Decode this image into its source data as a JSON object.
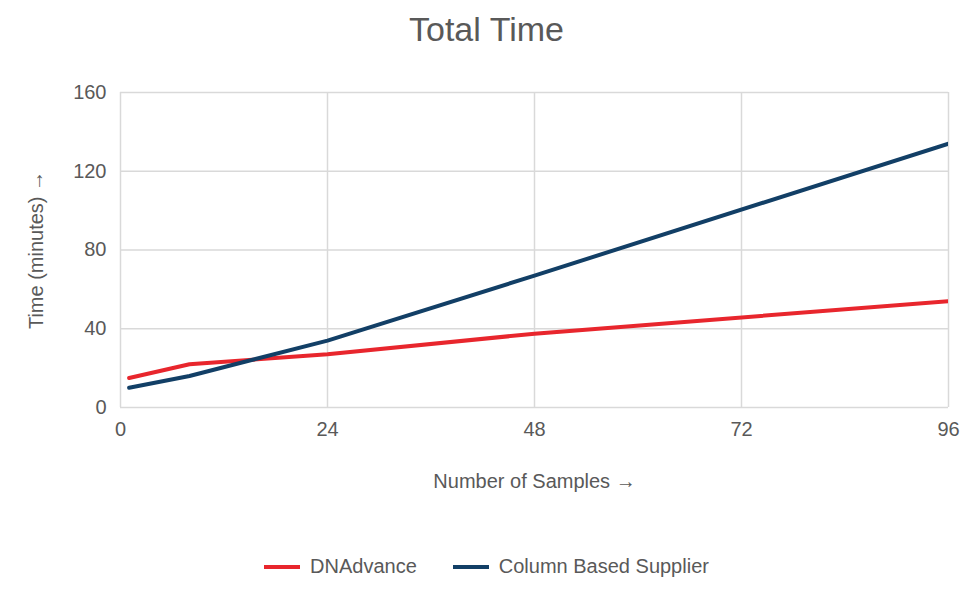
{
  "chart_data": {
    "type": "line",
    "title": "Total Time",
    "x_label": "Number of Samples",
    "y_label": "Time (minutes)",
    "x": [
      1,
      8,
      24,
      48,
      96
    ],
    "series": [
      {
        "name": "DNAdvance",
        "color": "#e8262d",
        "values": [
          15,
          22,
          27,
          37.5,
          54
        ]
      },
      {
        "name": "Column Based Supplier",
        "color": "#123f66",
        "values": [
          10,
          16,
          34,
          67,
          134
        ]
      }
    ],
    "xlim": [
      0,
      96
    ],
    "xticks": [
      0,
      24,
      48,
      72,
      96
    ],
    "ylim": [
      0,
      160
    ],
    "yticks": [
      0,
      40,
      80,
      120,
      160
    ],
    "grid": true,
    "legend": "bottom"
  }
}
